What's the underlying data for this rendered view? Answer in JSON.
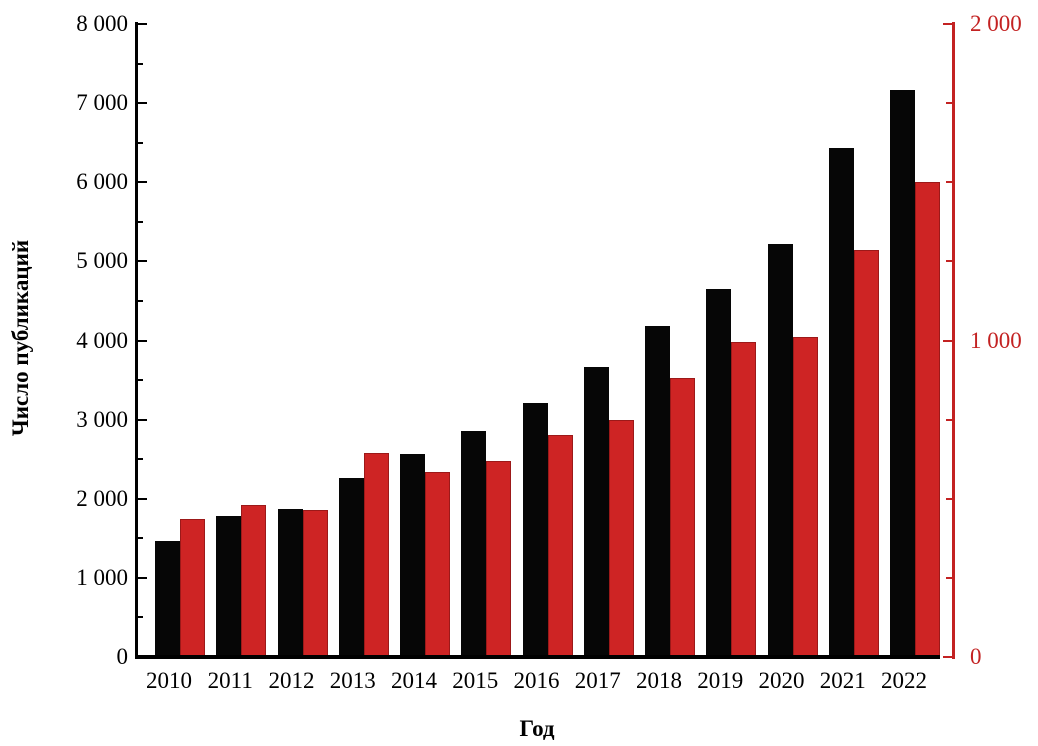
{
  "page": {
    "background": "#ffffff"
  },
  "chart_data": {
    "type": "bar",
    "title": "",
    "xlabel": "Год",
    "grid": false,
    "legend": "none",
    "categories": [
      "2010",
      "2011",
      "2012",
      "2013",
      "2014",
      "2015",
      "2016",
      "2017",
      "2018",
      "2019",
      "2020",
      "2021",
      "2022"
    ],
    "series": [
      {
        "name": "publications-black-bars",
        "axis": "left",
        "color": "#060606",
        "values": [
          1470,
          1780,
          1870,
          2260,
          2570,
          2860,
          3210,
          3660,
          4185,
          4655,
          5220,
          6430,
          7165
        ]
      },
      {
        "name": "secondary-red-bars",
        "axis": "right",
        "color": "#ce2424",
        "values": [
          435,
          480,
          465,
          645,
          585,
          620,
          700,
          750,
          880,
          995,
          1010,
          1285,
          1500
        ]
      }
    ],
    "left_axis": {
      "label": "Число публикаций",
      "min": 0,
      "max": 8000,
      "major_step": 1000,
      "minor_step": 500,
      "tick_labels": [
        "0",
        "1 000",
        "2 000",
        "3 000",
        "4 000",
        "5 000",
        "6 000",
        "7 000",
        "8 000"
      ],
      "color": "#000000"
    },
    "right_axis": {
      "label": "",
      "min": 0,
      "max": 2000,
      "major_step": 1000,
      "minor_step": 250,
      "tick_labels": [
        "0",
        "1 000",
        "2 000"
      ],
      "color": "#c32222"
    }
  }
}
